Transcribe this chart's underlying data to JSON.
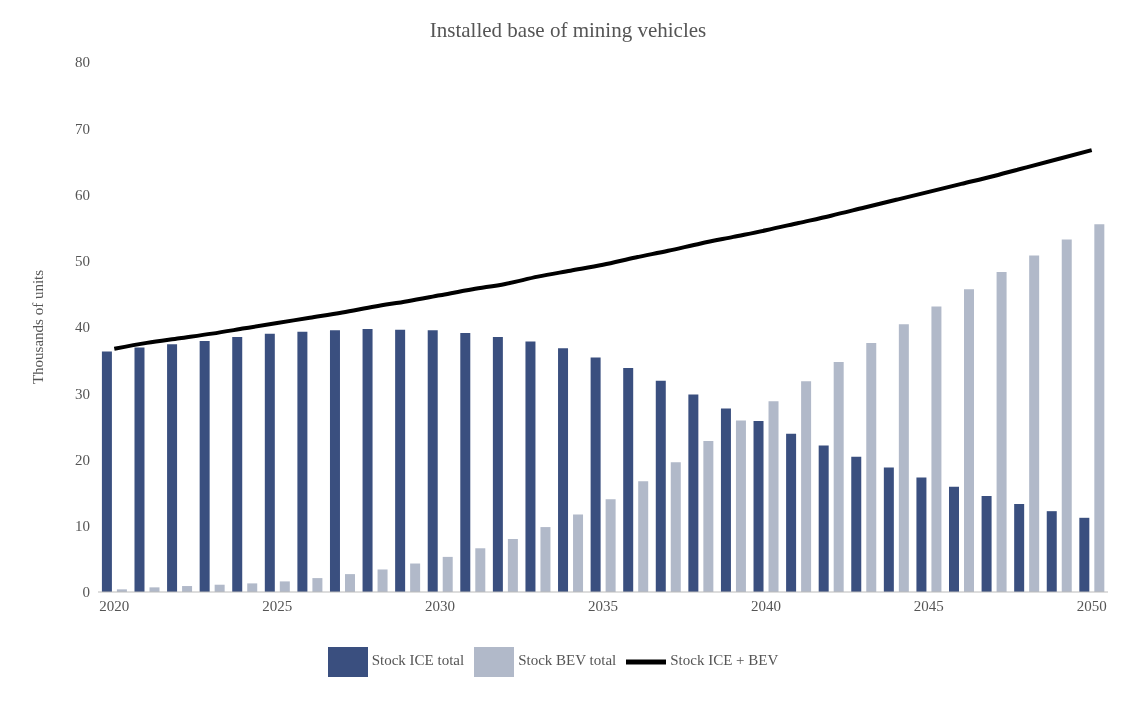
{
  "chart_data": {
    "type": "bar",
    "title": "Installed base of mining vehicles",
    "ylabel": "Thousands of units",
    "categories": [
      "2020",
      null,
      null,
      null,
      null,
      "2025",
      null,
      null,
      null,
      null,
      "2030",
      null,
      null,
      null,
      null,
      "2035",
      null,
      null,
      null,
      null,
      "2040",
      null,
      null,
      null,
      null,
      "2045",
      null,
      null,
      null,
      null,
      "2050"
    ],
    "ylim": [
      0,
      80
    ],
    "yticks": [
      0,
      10,
      20,
      30,
      40,
      50,
      60,
      70,
      80
    ],
    "grid": false,
    "legend": "bottom",
    "marker": "none",
    "series": [
      {
        "name": "Stock ICE total",
        "color": "#3a4f7f",
        "values": [
          36.3,
          36.9,
          37.4,
          37.9,
          38.5,
          39.0,
          39.3,
          39.5,
          39.7,
          39.6,
          39.5,
          39.1,
          38.5,
          37.8,
          36.8,
          35.4,
          33.8,
          31.9,
          29.8,
          27.7,
          25.8,
          23.9,
          22.1,
          20.4,
          18.8,
          17.3,
          15.9,
          14.5,
          13.3,
          12.2,
          11.2
        ]
      },
      {
        "name": "Stock BEV total",
        "color": "#b1b9c9",
        "values": [
          0.4,
          0.7,
          0.9,
          1.1,
          1.3,
          1.6,
          2.1,
          2.7,
          3.4,
          4.3,
          5.3,
          6.6,
          8.0,
          9.8,
          11.7,
          14.0,
          16.7,
          19.6,
          22.8,
          25.9,
          28.8,
          31.8,
          34.7,
          37.6,
          40.4,
          43.1,
          45.7,
          48.3,
          50.8,
          53.2,
          55.5
        ]
      },
      {
        "name": "Stock ICE + BEV",
        "type": "line",
        "color": "#000000",
        "line_style": "solid",
        "values": [
          36.7,
          37.6,
          38.3,
          39.0,
          39.8,
          40.6,
          41.4,
          42.2,
          43.1,
          43.9,
          44.8,
          45.7,
          46.5,
          47.6,
          48.5,
          49.4,
          50.5,
          51.5,
          52.6,
          53.6,
          54.6,
          55.7,
          56.8,
          58.0,
          59.2,
          60.4,
          61.6,
          62.8,
          64.1,
          65.4,
          66.7
        ]
      }
    ]
  }
}
